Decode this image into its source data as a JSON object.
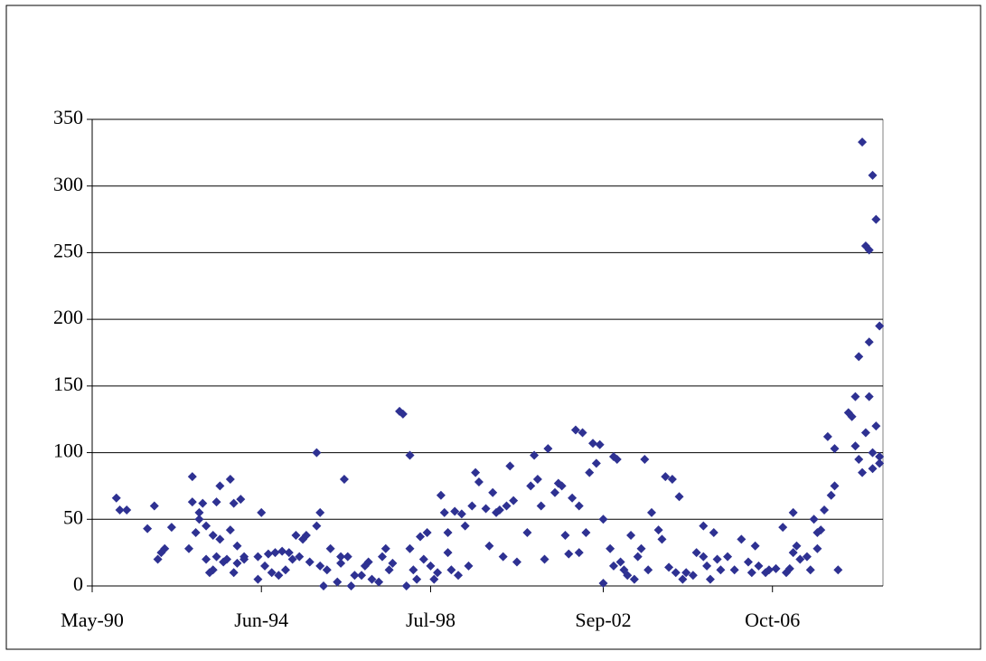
{
  "chart_data": {
    "type": "scatter",
    "color": "#2e3192",
    "grid": true,
    "xlim": [
      "1990-05",
      "2009-06"
    ],
    "xticks": [
      {
        "value": "1990-05",
        "label": "May-90"
      },
      {
        "value": "1994-06",
        "label": "Jun-94"
      },
      {
        "value": "1998-07",
        "label": "Jul-98"
      },
      {
        "value": "2002-09",
        "label": "Sep-02"
      },
      {
        "value": "2006-10",
        "label": "Oct-06"
      }
    ],
    "ylim": [
      0,
      350
    ],
    "yticks": [
      0,
      50,
      100,
      150,
      200,
      250,
      300,
      350
    ],
    "x": [
      "1990-12",
      "1991-01",
      "1991-03",
      "1991-09",
      "1991-11",
      "1991-12",
      "1992-01",
      "1992-02",
      "1992-04",
      "1992-09",
      "1992-10",
      "1992-10",
      "1992-11",
      "1992-12",
      "1992-12",
      "1993-01",
      "1993-02",
      "1993-02",
      "1993-03",
      "1993-04",
      "1993-04",
      "1993-05",
      "1993-05",
      "1993-06",
      "1993-06",
      "1993-07",
      "1993-08",
      "1993-09",
      "1993-09",
      "1993-10",
      "1993-10",
      "1993-11",
      "1993-11",
      "1993-12",
      "1994-01",
      "1994-01",
      "1994-05",
      "1994-05",
      "1994-06",
      "1994-07",
      "1994-08",
      "1994-09",
      "1994-10",
      "1994-11",
      "1994-12",
      "1995-01",
      "1995-02",
      "1995-03",
      "1995-04",
      "1995-05",
      "1995-06",
      "1995-07",
      "1995-08",
      "1995-10",
      "1995-10",
      "1995-11",
      "1995-11",
      "1995-12",
      "1996-01",
      "1996-02",
      "1996-04",
      "1996-05",
      "1996-05",
      "1996-06",
      "1996-07",
      "1996-08",
      "1996-09",
      "1996-11",
      "1996-12",
      "1997-01",
      "1997-02",
      "1997-04",
      "1997-05",
      "1997-06",
      "1997-07",
      "1997-08",
      "1997-10",
      "1997-11",
      "1997-12",
      "1998-01",
      "1998-01",
      "1998-02",
      "1998-03",
      "1998-04",
      "1998-05",
      "1998-06",
      "1998-07",
      "1998-08",
      "1998-09",
      "1998-10",
      "1998-11",
      "1998-12",
      "1998-12",
      "1999-01",
      "1999-02",
      "1999-03",
      "1999-04",
      "1999-05",
      "1999-06",
      "1999-07",
      "1999-08",
      "1999-09",
      "1999-11",
      "1999-12",
      "2000-01",
      "2000-02",
      "2000-03",
      "2000-04",
      "2000-05",
      "2000-06",
      "2000-07",
      "2000-08",
      "2000-11",
      "2000-12",
      "2001-01",
      "2001-02",
      "2001-03",
      "2001-04",
      "2001-05",
      "2001-07",
      "2001-08",
      "2001-09",
      "2001-10",
      "2001-11",
      "2001-12",
      "2002-01",
      "2002-02",
      "2002-02",
      "2002-03",
      "2002-04",
      "2002-05",
      "2002-06",
      "2002-07",
      "2002-08",
      "2002-09",
      "2002-09",
      "2002-11",
      "2002-12",
      "2002-12",
      "2003-01",
      "2003-02",
      "2003-03",
      "2003-04",
      "2003-05",
      "2003-06",
      "2003-07",
      "2003-08",
      "2003-09",
      "2003-10",
      "2003-11",
      "2004-01",
      "2004-02",
      "2004-03",
      "2004-04",
      "2004-05",
      "2004-06",
      "2004-07",
      "2004-08",
      "2004-09",
      "2004-11",
      "2004-12",
      "2005-02",
      "2005-02",
      "2005-03",
      "2005-04",
      "2005-05",
      "2005-06",
      "2005-07",
      "2005-09",
      "2005-11",
      "2006-01",
      "2006-03",
      "2006-04",
      "2006-05",
      "2006-06",
      "2006-08",
      "2006-09",
      "2006-11",
      "2007-01",
      "2007-02",
      "2007-03",
      "2007-04",
      "2007-04",
      "2007-05",
      "2007-06",
      "2007-08",
      "2007-09",
      "2007-10",
      "2007-11",
      "2007-11",
      "2007-12",
      "2008-01",
      "2008-02",
      "2008-03",
      "2008-04",
      "2008-04",
      "2008-05",
      "2008-08",
      "2008-09",
      "2008-10",
      "2008-10",
      "2008-11",
      "2008-11",
      "2008-12",
      "2008-12",
      "2009-01",
      "2009-01",
      "2009-02",
      "2009-02",
      "2009-02",
      "2009-03",
      "2009-03",
      "2009-03",
      "2009-04",
      "2009-04",
      "2009-05",
      "2009-05",
      "2009-05"
    ],
    "values": [
      66,
      57,
      57,
      43,
      60,
      20,
      25,
      28,
      44,
      28,
      63,
      82,
      40,
      55,
      50,
      62,
      45,
      20,
      10,
      38,
      12,
      22,
      63,
      75,
      35,
      18,
      20,
      42,
      80,
      10,
      62,
      30,
      17,
      65,
      22,
      20,
      5,
      22,
      55,
      15,
      24,
      10,
      25,
      8,
      26,
      12,
      25,
      20,
      38,
      22,
      35,
      38,
      18,
      45,
      100,
      15,
      55,
      0,
      12,
      28,
      3,
      22,
      17,
      80,
      22,
      0,
      8,
      8,
      15,
      18,
      5,
      3,
      22,
      28,
      12,
      17,
      131,
      129,
      0,
      98,
      28,
      12,
      5,
      37,
      20,
      40,
      15,
      5,
      10,
      68,
      55,
      40,
      25,
      12,
      56,
      8,
      54,
      45,
      15,
      60,
      85,
      78,
      58,
      30,
      70,
      55,
      57,
      22,
      60,
      90,
      64,
      18,
      40,
      75,
      98,
      80,
      60,
      20,
      103,
      70,
      77,
      75,
      38,
      24,
      66,
      117,
      60,
      25,
      115,
      40,
      85,
      107,
      92,
      106,
      2,
      50,
      28,
      97,
      15,
      95,
      18,
      12,
      8,
      38,
      5,
      22,
      28,
      95,
      12,
      55,
      42,
      35,
      82,
      14,
      80,
      10,
      67,
      5,
      10,
      8,
      25,
      45,
      22,
      15,
      5,
      40,
      20,
      12,
      22,
      12,
      35,
      18,
      10,
      30,
      15,
      10,
      12,
      13,
      44,
      10,
      13,
      25,
      55,
      30,
      20,
      22,
      12,
      50,
      28,
      40,
      42,
      57,
      112,
      68,
      75,
      103,
      12,
      130,
      127,
      142,
      105,
      172,
      95,
      333,
      85,
      255,
      115,
      252,
      142,
      183,
      308,
      88,
      100,
      275,
      120,
      195,
      92,
      97
    ]
  }
}
